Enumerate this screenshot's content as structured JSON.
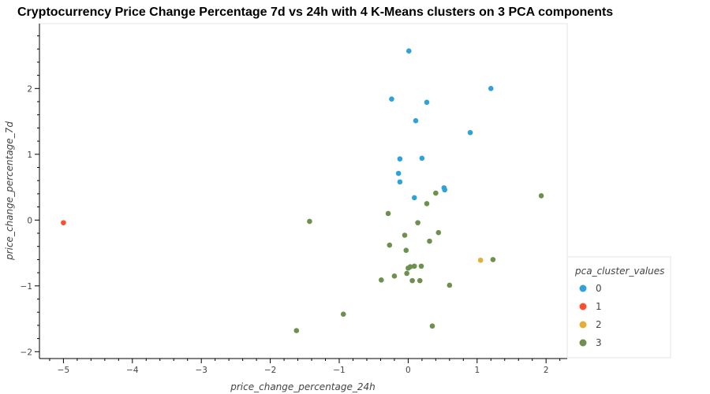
{
  "title": "Cryptocurrency Price Change Percentage 7d vs 24h with 4 K-Means clusters on 3 PCA components",
  "chart_data": {
    "type": "scatter",
    "title": "Cryptocurrency Price Change Percentage 7d vs 24h with 4 K-Means clusters on 3 PCA components",
    "xlabel": "price_change_percentage_24h",
    "ylabel": "price_change_percentage_7d",
    "xlim": [
      -5.4,
      2.3
    ],
    "ylim": [
      -2.1,
      3.0
    ],
    "xticks": [
      -5,
      -4,
      -3,
      -2,
      -1,
      0,
      1,
      2
    ],
    "yticks": [
      -2,
      -1,
      0,
      1,
      2
    ],
    "grid": false,
    "legend": {
      "title": "pca_cluster_values",
      "placement": "bottom-right-outside"
    },
    "colors": {
      "0": "#30a2da",
      "1": "#fc4f30",
      "2": "#e5ae38",
      "3": "#6d904f"
    },
    "series": [
      {
        "name": "0",
        "points": [
          [
            0.01,
            2.57
          ],
          [
            -0.24,
            1.84
          ],
          [
            0.27,
            1.79
          ],
          [
            1.2,
            2.0
          ],
          [
            0.11,
            1.51
          ],
          [
            0.9,
            1.33
          ],
          [
            -0.12,
            0.93
          ],
          [
            0.2,
            0.94
          ],
          [
            -0.14,
            0.71
          ],
          [
            -0.12,
            0.58
          ],
          [
            0.52,
            0.49
          ],
          [
            0.53,
            0.46
          ],
          [
            0.09,
            0.34
          ]
        ]
      },
      {
        "name": "1",
        "points": [
          [
            -5.0,
            -0.04
          ]
        ]
      },
      {
        "name": "2",
        "points": [
          [
            1.05,
            -0.61
          ]
        ]
      },
      {
        "name": "3",
        "points": [
          [
            -1.43,
            -0.02
          ],
          [
            -0.29,
            0.1
          ],
          [
            0.4,
            0.41
          ],
          [
            0.27,
            0.25
          ],
          [
            1.93,
            0.37
          ],
          [
            0.14,
            -0.04
          ],
          [
            0.44,
            -0.19
          ],
          [
            -0.05,
            -0.23
          ],
          [
            0.31,
            -0.32
          ],
          [
            -0.27,
            -0.38
          ],
          [
            -0.03,
            -0.46
          ],
          [
            1.23,
            -0.6
          ],
          [
            0.09,
            -0.7
          ],
          [
            0.03,
            -0.71
          ],
          [
            0.0,
            -0.73
          ],
          [
            0.19,
            -0.7
          ],
          [
            -0.02,
            -0.81
          ],
          [
            -0.2,
            -0.85
          ],
          [
            -0.39,
            -0.91
          ],
          [
            0.06,
            -0.92
          ],
          [
            0.17,
            -0.92
          ],
          [
            0.6,
            -0.99
          ],
          [
            -0.94,
            -1.43
          ],
          [
            -1.62,
            -1.68
          ],
          [
            0.35,
            -1.61
          ]
        ]
      }
    ]
  }
}
